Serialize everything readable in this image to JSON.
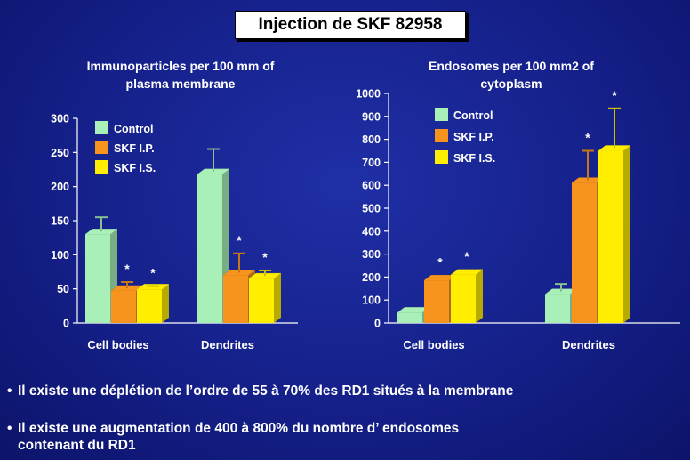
{
  "slide": {
    "title": "Injection de SKF 82958",
    "bullets": [
      {
        "line1": "Il existe une déplétion de l’ordre de 55 à 70% des RD1 situés à la membrane",
        "line2": ""
      },
      {
        "line1": "Il existe une augmentation de 400 à 800% du nombre d’ endosomes",
        "line2": "contenant du RD1"
      }
    ]
  },
  "colors": {
    "Control": "#a8f0b8",
    "SKF I.P.": "#f7941d",
    "SKF I.S.": "#ffee00"
  },
  "chart_data": [
    {
      "type": "bar",
      "title_lines": [
        "Immunoparticles per 100 mm of",
        "plasma  membrane"
      ],
      "categories": [
        "Cell bodies",
        "Dendrites"
      ],
      "series": [
        {
          "name": "Control",
          "values": [
            130,
            218
          ],
          "errors": [
            25,
            37
          ]
        },
        {
          "name": "SKF I.P.",
          "values": [
            47,
            70
          ],
          "errors": [
            13,
            32
          ]
        },
        {
          "name": "SKF I.S.",
          "values": [
            49,
            65
          ],
          "errors": [
            5,
            12
          ]
        }
      ],
      "significance": [
        [
          false,
          true,
          true
        ],
        [
          false,
          true,
          true
        ]
      ],
      "star": "*",
      "ylim": [
        0,
        300
      ],
      "yticks": [
        0,
        50,
        100,
        150,
        200,
        250,
        300
      ],
      "legend": "top-left"
    },
    {
      "type": "bar",
      "title_lines": [
        "Endosomes per 100 mm2 of",
        "cytoplasm"
      ],
      "categories": [
        "Cell bodies",
        "Dendrites"
      ],
      "series": [
        {
          "name": "Control",
          "values": [
            45,
            125
          ],
          "errors": [
            0,
            45
          ]
        },
        {
          "name": "SKF I.P.",
          "values": [
            185,
            610
          ],
          "errors": [
            0,
            140
          ]
        },
        {
          "name": "SKF I.S.",
          "values": [
            210,
            750
          ],
          "errors": [
            0,
            185
          ]
        }
      ],
      "significance": [
        [
          false,
          true,
          true
        ],
        [
          false,
          true,
          true
        ]
      ],
      "star": "*",
      "ylim": [
        0,
        1000
      ],
      "yticks": [
        0,
        100,
        200,
        300,
        400,
        500,
        600,
        700,
        800,
        900,
        1000
      ],
      "legend": "top-left"
    }
  ]
}
